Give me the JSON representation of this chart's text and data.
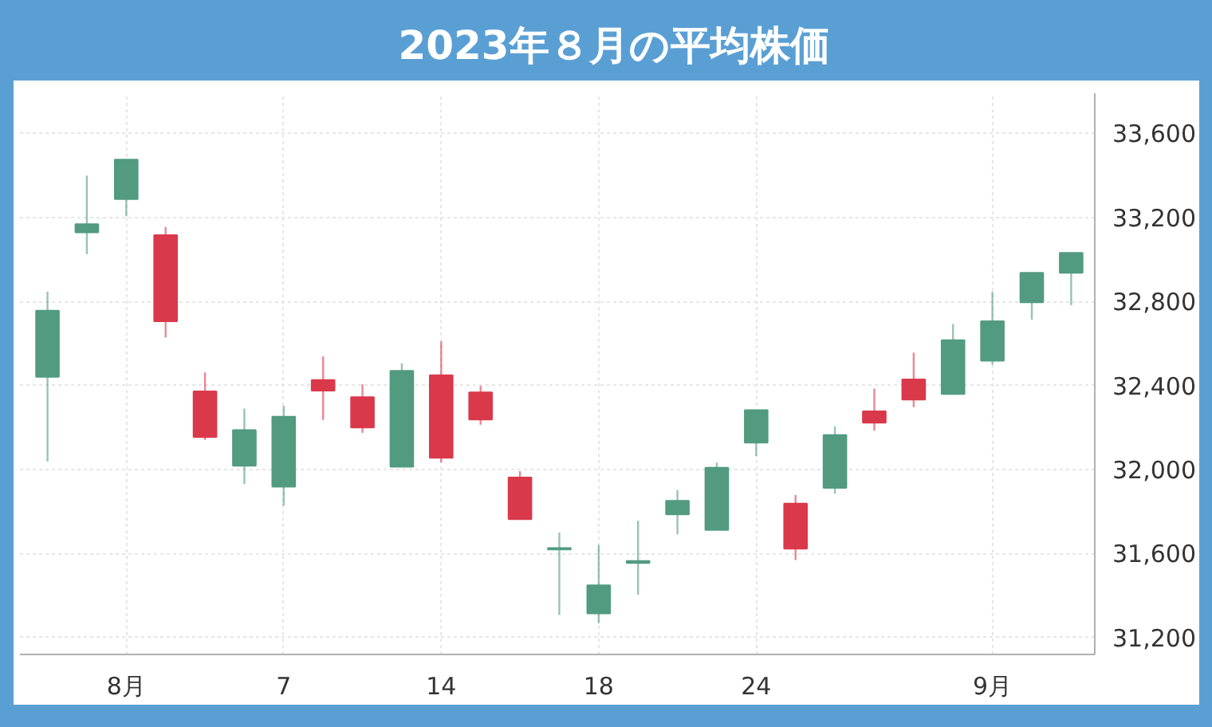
{
  "chart_data": {
    "type": "candlestick",
    "title": "2023年８月の平均株価",
    "categories": [
      null,
      null,
      "8月",
      null,
      null,
      null,
      "7",
      null,
      null,
      null,
      "14",
      null,
      null,
      null,
      "18",
      null,
      null,
      null,
      "24",
      null,
      null,
      null,
      null,
      null,
      "9月",
      null,
      null
    ],
    "ohlc": [
      [
        32441,
        32846,
        32038,
        32756
      ],
      [
        33128,
        33398,
        33025,
        33167
      ],
      [
        33287,
        33474,
        33205,
        33474
      ],
      [
        33115,
        33154,
        32628,
        32705
      ],
      [
        32372,
        32462,
        32141,
        32154
      ],
      [
        32018,
        32290,
        31931,
        32188
      ],
      [
        31918,
        32303,
        31828,
        32251
      ],
      [
        32426,
        32538,
        32236,
        32375
      ],
      [
        32344,
        32405,
        32174,
        32200
      ],
      [
        32013,
        32505,
        32013,
        32469
      ],
      [
        32448,
        32610,
        32033,
        32056
      ],
      [
        32367,
        32398,
        32213,
        32238
      ],
      [
        31962,
        31992,
        31764,
        31764
      ],
      [
        31620,
        31700,
        31308,
        31626
      ],
      [
        31315,
        31641,
        31269,
        31449
      ],
      [
        31555,
        31756,
        31405,
        31565
      ],
      [
        31787,
        31902,
        31692,
        31851
      ],
      [
        31713,
        32033,
        31713,
        32008
      ],
      [
        32128,
        32282,
        32064,
        32282
      ],
      [
        31838,
        31879,
        31569,
        31623
      ],
      [
        31913,
        32205,
        31885,
        32164
      ],
      [
        32277,
        32385,
        32185,
        32223
      ],
      [
        32428,
        32556,
        32297,
        32333
      ],
      [
        32359,
        32692,
        32359,
        32615
      ],
      [
        32518,
        32846,
        32500,
        32705
      ],
      [
        32795,
        32936,
        32713,
        32936
      ],
      [
        32936,
        33031,
        32782,
        33031
      ]
    ],
    "colors": [
      "#529b81",
      "#529b81",
      "#529b81",
      "#d9394b",
      "#d9394b",
      "#529b81",
      "#529b81",
      "#d9394b",
      "#d9394b",
      "#529b81",
      "#d9394b",
      "#d9394b",
      "#d9394b",
      "#529b81",
      "#529b81",
      "#529b81",
      "#529b81",
      "#529b81",
      "#529b81",
      "#d9394b",
      "#529b81",
      "#d9394b",
      "#d9394b",
      "#529b81",
      "#529b81",
      "#529b81",
      "#529b81"
    ],
    "ylim": [
      31120,
      33790
    ],
    "yticks": [
      {
        "value": 31200,
        "label": "31,200"
      },
      {
        "value": 31600,
        "label": "31,600"
      },
      {
        "value": 32000,
        "label": "32,000"
      },
      {
        "value": 32400,
        "label": "32,400"
      },
      {
        "value": 32800,
        "label": "32,800"
      },
      {
        "value": 33200,
        "label": "33,200"
      },
      {
        "value": 33600,
        "label": "33,600"
      }
    ],
    "grid": true
  }
}
